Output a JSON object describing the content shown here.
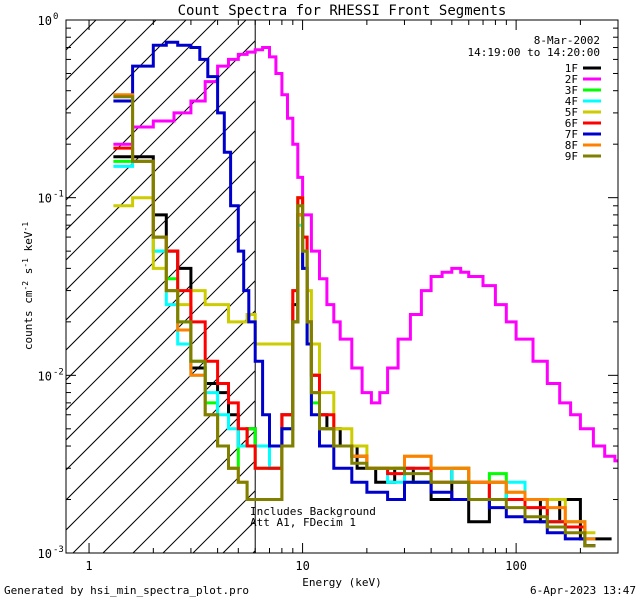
{
  "chart_data": {
    "type": "line",
    "title": "Count Spectra for RHESSI Front Segments",
    "xlabel": "Energy (keV)",
    "ylabel_main": "counts cm",
    "ylabel_exp1": "-2",
    "ylabel_s": " s",
    "ylabel_exp2": "-1",
    "ylabel_kev": " keV",
    "ylabel_exp3": "-1",
    "x_scale": "log",
    "y_scale": "log",
    "xlim": [
      0.78,
      300
    ],
    "ylim": [
      0.001,
      1.0
    ],
    "x_ticks": [
      {
        "value": 1,
        "label": "1"
      },
      {
        "value": 10,
        "label": "10"
      },
      {
        "value": 100,
        "label": "100"
      }
    ],
    "y_ticks": [
      {
        "value": 1,
        "mantissa": "10",
        "exp": "0"
      },
      {
        "value": 0.1,
        "mantissa": "10",
        "exp": "-1"
      },
      {
        "value": 0.01,
        "mantissa": "10",
        "exp": "-2"
      },
      {
        "value": 0.001,
        "mantissa": "10",
        "exp": "-3"
      }
    ],
    "date": "8-Mar-2002",
    "time_range": "14:19:00 to 14:20:00",
    "annotation_line1": "Includes Background",
    "annotation_line2": "Att A1, FDecim 1",
    "shaded_region_max_kev": 6.0,
    "series": [
      {
        "name": "1F",
        "color": "#000000",
        "energies": [
          1.3,
          1.6,
          2.0,
          2.3,
          2.6,
          3.0,
          3.5,
          4.0,
          4.5,
          5.0,
          5.5,
          6.0,
          7.0,
          8.0,
          9.0,
          9.5,
          10.0,
          10.5,
          11,
          12,
          13,
          15,
          18,
          22,
          27,
          33,
          40,
          50,
          60,
          75,
          90,
          110,
          130,
          160,
          200,
          250
        ],
        "values": [
          0.17,
          0.17,
          0.08,
          0.05,
          0.04,
          0.011,
          0.009,
          0.008,
          0.006,
          0.004,
          0.005,
          0.004,
          0.003,
          0.006,
          0.025,
          0.08,
          0.04,
          0.02,
          0.01,
          0.006,
          0.005,
          0.004,
          0.003,
          0.0025,
          0.003,
          0.0025,
          0.002,
          0.003,
          0.0015,
          0.0025,
          0.002,
          0.002,
          0.0015,
          0.002,
          0.0012,
          0.0012
        ]
      },
      {
        "name": "2F",
        "color": "#ff00ff",
        "energies": [
          1.3,
          1.6,
          2.0,
          2.5,
          3.0,
          3.5,
          4.0,
          4.5,
          5.0,
          5.5,
          6.0,
          6.5,
          7.0,
          7.5,
          8.0,
          8.5,
          9.0,
          9.5,
          10.0,
          11,
          12,
          13,
          14,
          15,
          17,
          19,
          21,
          23,
          25,
          28,
          32,
          36,
          40,
          45,
          50,
          55,
          60,
          70,
          80,
          90,
          100,
          120,
          140,
          160,
          180,
          200,
          230,
          260,
          290
        ],
        "values": [
          0.2,
          0.25,
          0.27,
          0.3,
          0.35,
          0.45,
          0.55,
          0.6,
          0.64,
          0.66,
          0.68,
          0.7,
          0.62,
          0.5,
          0.38,
          0.28,
          0.2,
          0.13,
          0.08,
          0.05,
          0.035,
          0.025,
          0.02,
          0.016,
          0.011,
          0.008,
          0.007,
          0.008,
          0.011,
          0.016,
          0.022,
          0.03,
          0.036,
          0.038,
          0.04,
          0.038,
          0.036,
          0.032,
          0.025,
          0.02,
          0.016,
          0.012,
          0.009,
          0.007,
          0.006,
          0.005,
          0.004,
          0.0035,
          0.0033
        ]
      },
      {
        "name": "3F",
        "color": "#00ff00",
        "energies": [
          1.3,
          1.6,
          2.0,
          2.3,
          2.6,
          3.0,
          3.5,
          4.0,
          4.5,
          5.0,
          5.5,
          6.0,
          7.0,
          8.0,
          9.0,
          9.5,
          10.0,
          10.5,
          11,
          12,
          14,
          17,
          20,
          25,
          30,
          40,
          50,
          60,
          75,
          90,
          110,
          140,
          170,
          210
        ],
        "values": [
          0.16,
          0.16,
          0.05,
          0.035,
          0.02,
          0.012,
          0.007,
          0.004,
          0.003,
          0.004,
          0.005,
          0.003,
          0.003,
          0.005,
          0.02,
          0.1,
          0.05,
          0.015,
          0.007,
          0.005,
          0.004,
          0.0035,
          0.003,
          0.003,
          0.0025,
          0.003,
          0.003,
          0.002,
          0.0028,
          0.002,
          0.002,
          0.0015,
          0.0014,
          0.0011
        ]
      },
      {
        "name": "4F",
        "color": "#00ffff",
        "energies": [
          1.3,
          1.6,
          2.0,
          2.3,
          2.6,
          3.0,
          3.5,
          4.0,
          4.5,
          5.0,
          5.5,
          6.0,
          7.0,
          8.0,
          9.0,
          9.5,
          10.0,
          10.5,
          11,
          12,
          14,
          17,
          20,
          25,
          30,
          40,
          50,
          60,
          75,
          90,
          110,
          140,
          170,
          210
        ],
        "values": [
          0.15,
          0.16,
          0.05,
          0.025,
          0.015,
          0.01,
          0.008,
          0.006,
          0.005,
          0.004,
          0.004,
          0.004,
          0.003,
          0.004,
          0.02,
          0.07,
          0.04,
          0.015,
          0.008,
          0.005,
          0.004,
          0.0035,
          0.003,
          0.0025,
          0.003,
          0.003,
          0.0025,
          0.0025,
          0.002,
          0.0025,
          0.002,
          0.0015,
          0.0015,
          0.0012
        ]
      },
      {
        "name": "5F",
        "color": "#cccc00",
        "energies": [
          1.3,
          1.6,
          2.0,
          2.3,
          2.6,
          3.0,
          3.5,
          4.0,
          4.5,
          5.0,
          5.5,
          6.0,
          7.0,
          8.0,
          9.0,
          9.5,
          10.0,
          10.5,
          11,
          12,
          14,
          17,
          20,
          25,
          30,
          40,
          50,
          60,
          75,
          90,
          110,
          140,
          170,
          210
        ],
        "values": [
          0.09,
          0.1,
          0.04,
          0.03,
          0.025,
          0.03,
          0.025,
          0.025,
          0.02,
          0.02,
          0.022,
          0.015,
          0.015,
          0.015,
          0.03,
          0.1,
          0.06,
          0.03,
          0.015,
          0.008,
          0.005,
          0.004,
          0.003,
          0.003,
          0.0035,
          0.003,
          0.003,
          0.0025,
          0.0025,
          0.0022,
          0.002,
          0.002,
          0.0015,
          0.0013
        ]
      },
      {
        "name": "6F",
        "color": "#ff0000",
        "energies": [
          1.3,
          1.6,
          2.0,
          2.3,
          2.6,
          3.0,
          3.5,
          4.0,
          4.5,
          5.0,
          5.5,
          6.0,
          7.0,
          8.0,
          9.0,
          9.5,
          10.0,
          10.5,
          11,
          12,
          14,
          17,
          20,
          25,
          30,
          40,
          50,
          60,
          75,
          90,
          110,
          140,
          170,
          210
        ],
        "values": [
          0.19,
          0.16,
          0.06,
          0.05,
          0.03,
          0.02,
          0.012,
          0.009,
          0.007,
          0.005,
          0.004,
          0.003,
          0.003,
          0.006,
          0.03,
          0.1,
          0.06,
          0.02,
          0.01,
          0.006,
          0.004,
          0.0035,
          0.003,
          0.0028,
          0.003,
          0.0025,
          0.0025,
          0.0025,
          0.002,
          0.002,
          0.0018,
          0.0015,
          0.0014,
          0.0011
        ]
      },
      {
        "name": "7F",
        "color": "#0000cc",
        "energies": [
          1.3,
          1.6,
          2.0,
          2.3,
          2.6,
          3.0,
          3.3,
          3.6,
          4.0,
          4.3,
          4.6,
          5.0,
          5.3,
          5.6,
          6.0,
          6.5,
          7.0,
          8.0,
          9.0,
          9.5,
          10.0,
          10.5,
          11,
          12,
          14,
          17,
          20,
          25,
          30,
          40,
          50,
          60,
          75,
          90,
          110,
          140,
          170,
          210
        ],
        "values": [
          0.35,
          0.55,
          0.72,
          0.75,
          0.72,
          0.7,
          0.6,
          0.48,
          0.3,
          0.18,
          0.09,
          0.05,
          0.03,
          0.02,
          0.012,
          0.006,
          0.004,
          0.005,
          0.02,
          0.08,
          0.04,
          0.015,
          0.006,
          0.004,
          0.003,
          0.0025,
          0.0022,
          0.002,
          0.0025,
          0.0022,
          0.002,
          0.002,
          0.0018,
          0.0016,
          0.0015,
          0.0013,
          0.0012,
          0.0011
        ]
      },
      {
        "name": "8F",
        "color": "#ff8000",
        "energies": [
          1.3,
          1.6,
          2.0,
          2.3,
          2.6,
          3.0,
          3.5,
          4.0,
          4.5,
          5.0,
          5.5,
          6.0,
          7.0,
          8.0,
          9.0,
          9.5,
          10.0,
          10.5,
          11,
          12,
          14,
          17,
          20,
          25,
          30,
          40,
          50,
          60,
          75,
          90,
          110,
          140,
          170,
          210
        ],
        "values": [
          0.38,
          0.16,
          0.06,
          0.03,
          0.018,
          0.01,
          0.006,
          0.004,
          0.003,
          0.0025,
          0.002,
          0.002,
          0.002,
          0.004,
          0.02,
          0.08,
          0.05,
          0.02,
          0.008,
          0.005,
          0.004,
          0.0035,
          0.003,
          0.003,
          0.0035,
          0.003,
          0.003,
          0.0025,
          0.0025,
          0.0022,
          0.002,
          0.0018,
          0.0015,
          0.0012
        ]
      },
      {
        "name": "9F",
        "color": "#808000",
        "energies": [
          1.3,
          1.6,
          2.0,
          2.3,
          2.6,
          3.0,
          3.5,
          4.0,
          4.5,
          5.0,
          5.5,
          6.0,
          7.0,
          8.0,
          9.0,
          9.5,
          10.0,
          10.5,
          11,
          12,
          14,
          17,
          20,
          25,
          30,
          40,
          50,
          60,
          75,
          90,
          110,
          140,
          170,
          210
        ],
        "values": [
          0.37,
          0.16,
          0.06,
          0.03,
          0.02,
          0.012,
          0.006,
          0.004,
          0.003,
          0.0025,
          0.002,
          0.002,
          0.002,
          0.004,
          0.02,
          0.09,
          0.05,
          0.02,
          0.008,
          0.005,
          0.004,
          0.0032,
          0.003,
          0.003,
          0.0028,
          0.0025,
          0.0025,
          0.002,
          0.002,
          0.0018,
          0.0016,
          0.0014,
          0.0013,
          0.0011
        ]
      }
    ]
  },
  "footer": {
    "generated_by": "Generated by hsi_min_spectra_plot.pro",
    "timestamp": "6-Apr-2023 13:47"
  }
}
